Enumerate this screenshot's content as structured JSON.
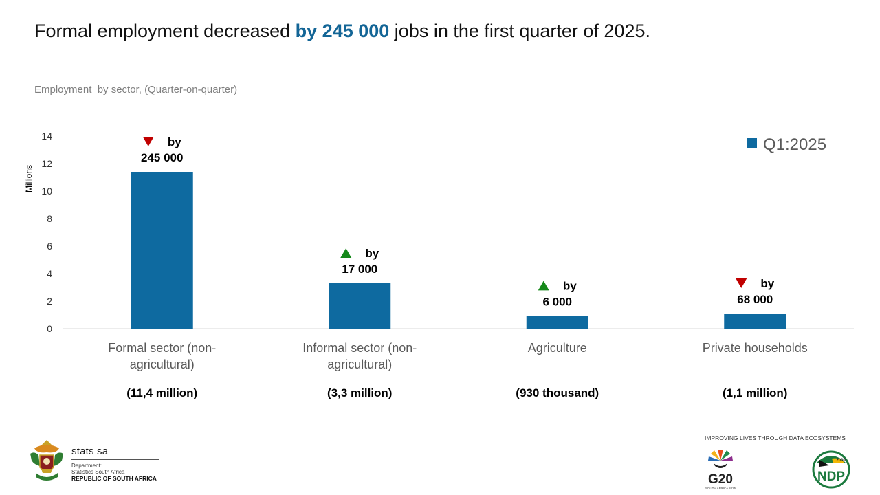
{
  "headline": {
    "before": "Formal employment decreased ",
    "highlight": "by 245 000",
    "after": " jobs in the first quarter of 2025."
  },
  "subtitle": "Employment  by sector, (Quarter-on-quarter)",
  "colors": {
    "bar": "#0e6aa0",
    "headline_highlight": "#136596",
    "arrow_up": "#15891a",
    "arrow_down": "#c00000"
  },
  "chart_data": {
    "type": "bar",
    "categories": [
      [
        "Formal sector (non-",
        "agricultural)"
      ],
      [
        "Informal sector (non-",
        "agricultural)"
      ],
      [
        "Agriculture"
      ],
      [
        "Private households"
      ]
    ],
    "series": [
      {
        "name": "Q1:2025",
        "values": [
          11.4,
          3.3,
          0.93,
          1.1
        ]
      }
    ],
    "ylabel": "Millions",
    "ylim": [
      0,
      14
    ],
    "yticks": [
      0,
      2,
      4,
      6,
      8,
      10,
      12,
      14
    ],
    "grid": false,
    "legend_position": "top-right",
    "annotations": [
      {
        "direction": "down",
        "text_top": "by",
        "text_bottom": "245 000"
      },
      {
        "direction": "up",
        "text_top": "by",
        "text_bottom": "17 000"
      },
      {
        "direction": "up",
        "text_top": "by",
        "text_bottom": "6 000"
      },
      {
        "direction": "down",
        "text_top": "by",
        "text_bottom": "68 000"
      }
    ],
    "totals": [
      "(11,4 million)",
      "(3,3 million)",
      "(930 thousand)",
      "(1,1 million)"
    ]
  },
  "footer": {
    "org_name": "stats sa",
    "dept_line1": "Department:",
    "dept_line2": "Statistics South Africa",
    "country": "REPUBLIC OF SOUTH AFRICA",
    "tagline": "IMPROVING LIVES THROUGH DATA ECOSYSTEMS",
    "g20_text": "G20",
    "g20_sub": "SOUTH AFRICA 2025",
    "ndp_text": "NDP",
    "ndp_year": "2030"
  }
}
